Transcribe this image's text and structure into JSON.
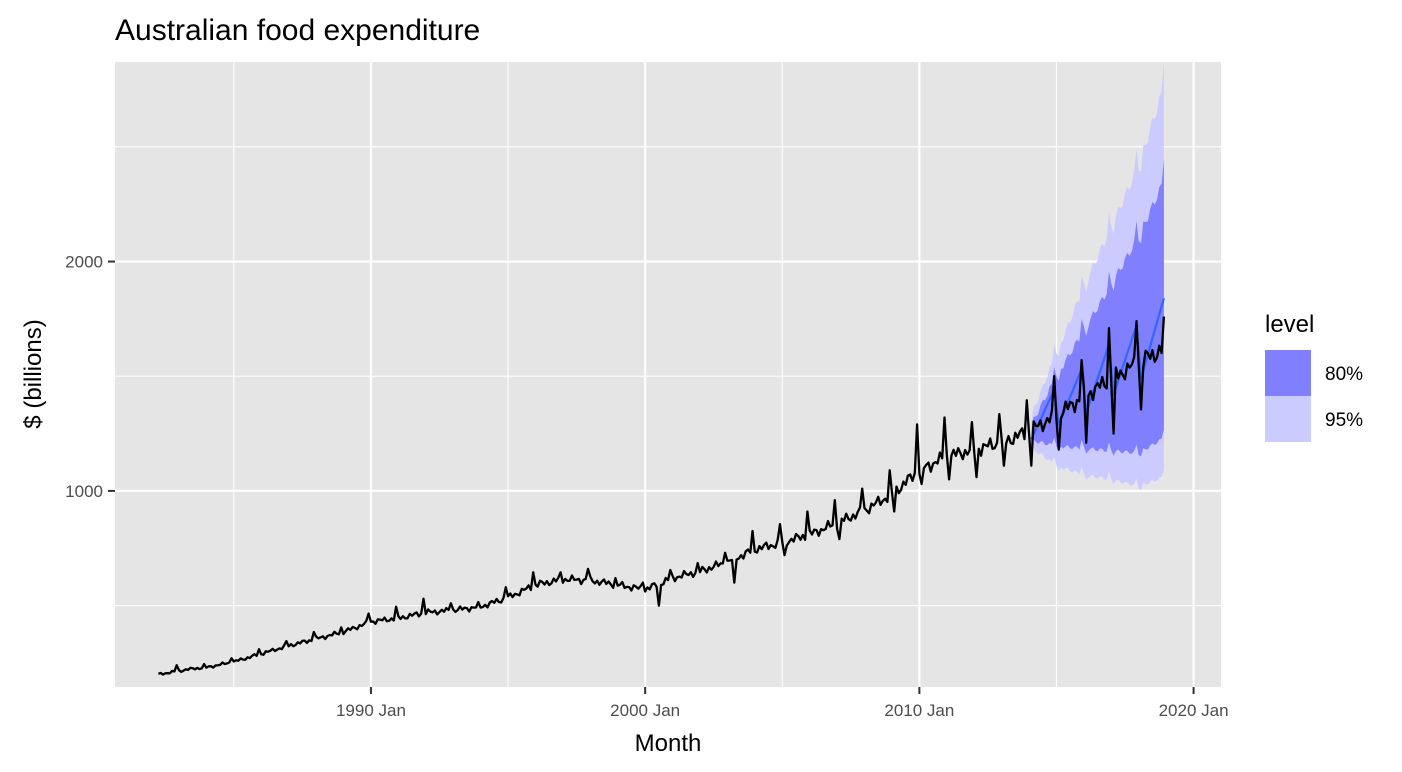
{
  "chart_data": {
    "type": "line",
    "title": "Australian food expenditure",
    "xlabel": "Month",
    "ylabel": "$ (billions)",
    "x_axis": {
      "type": "date",
      "range": [
        "1980-09",
        "2021-01"
      ],
      "major_ticks": [
        "1990-01",
        "2000-01",
        "2010-01",
        "2020-01"
      ],
      "major_tick_labels": [
        "1990 Jan",
        "2000 Jan",
        "2010 Jan",
        "2020 Jan"
      ],
      "minor_ticks": [
        "1985-01",
        "1995-01",
        "2005-01",
        "2015-01"
      ]
    },
    "y_axis": {
      "range": [
        145,
        2870
      ],
      "major_ticks": [
        1000,
        2000
      ],
      "major_tick_labels": [
        "1000",
        "2000"
      ],
      "minor_ticks": [
        500,
        1500,
        2500
      ]
    },
    "grid": true,
    "background": "#e5e5e5",
    "legend": {
      "title": "level",
      "position": "right",
      "entries": [
        {
          "label": "80%",
          "color": "#8080ff"
        },
        {
          "label": "95%",
          "color": "#cbcbff"
        }
      ]
    },
    "series": [
      {
        "name": "",
        "kind": "observed",
        "color": "#000000",
        "points": [
          [
            "1982-04",
            200
          ],
          [
            "1983-01",
            215
          ],
          [
            "1983-07",
            225
          ],
          [
            "1984-01",
            230
          ],
          [
            "1985-01",
            255
          ],
          [
            "1986-01",
            290
          ],
          [
            "1987-01",
            325
          ],
          [
            "1988-01",
            355
          ],
          [
            "1989-01",
            385
          ],
          [
            "1990-01",
            430
          ],
          [
            "1991-01",
            445
          ],
          [
            "1992-01",
            470
          ],
          [
            "1993-01",
            480
          ],
          [
            "1994-01",
            495
          ],
          [
            "1995-01",
            535
          ],
          [
            "1996-01",
            590
          ],
          [
            "1997-01",
            615
          ],
          [
            "1998-01",
            610
          ],
          [
            "1999-01",
            590
          ],
          [
            "2000-01",
            570
          ],
          [
            "2001-01",
            620
          ],
          [
            "2002-01",
            650
          ],
          [
            "2003-01",
            690
          ],
          [
            "2004-01",
            745
          ],
          [
            "2005-01",
            775
          ],
          [
            "2006-01",
            810
          ],
          [
            "2007-01",
            860
          ],
          [
            "2008-01",
            915
          ],
          [
            "2009-01",
            985
          ],
          [
            "2010-01",
            1090
          ],
          [
            "2011-01",
            1150
          ],
          [
            "2012-01",
            1180
          ],
          [
            "2013-01",
            1210
          ],
          [
            "2014-01",
            1260
          ],
          [
            "2015-01",
            1330
          ],
          [
            "2016-01",
            1410
          ],
          [
            "2017-01",
            1490
          ],
          [
            "2018-01",
            1560
          ],
          [
            "2018-12",
            1620
          ]
        ],
        "spikes": [
          [
            "1982-12",
            240
          ],
          [
            "1983-12",
            245
          ],
          [
            "1984-12",
            270
          ],
          [
            "1985-12",
            310
          ],
          [
            "1986-12",
            345
          ],
          [
            "1987-12",
            385
          ],
          [
            "1988-12",
            405
          ],
          [
            "1989-12",
            465
          ],
          [
            "1990-12",
            495
          ],
          [
            "1991-12",
            530
          ],
          [
            "1992-12",
            510
          ],
          [
            "1993-12",
            515
          ],
          [
            "1994-12",
            580
          ],
          [
            "1995-12",
            645
          ],
          [
            "1996-12",
            645
          ],
          [
            "1997-12",
            660
          ],
          [
            "1998-12",
            620
          ],
          [
            "1999-12",
            600
          ],
          [
            "2000-12",
            655
          ],
          [
            "2001-12",
            685
          ],
          [
            "2002-12",
            730
          ],
          [
            "2003-12",
            825
          ],
          [
            "2004-12",
            855
          ],
          [
            "2005-12",
            910
          ],
          [
            "2006-12",
            960
          ],
          [
            "2007-12",
            1010
          ],
          [
            "2008-12",
            1090
          ],
          [
            "2009-12",
            1290
          ],
          [
            "2010-12",
            1320
          ],
          [
            "2011-12",
            1300
          ],
          [
            "2012-12",
            1335
          ],
          [
            "2013-12",
            1395
          ],
          [
            "2014-12",
            1500
          ],
          [
            "2015-12",
            1570
          ],
          [
            "2016-12",
            1710
          ],
          [
            "2017-12",
            1740
          ],
          [
            "2018-12",
            1760
          ]
        ],
        "dips": [
          [
            "2000-07",
            500
          ],
          [
            "2003-04",
            600
          ],
          [
            "2005-02",
            720
          ],
          [
            "2007-02",
            790
          ],
          [
            "2009-02",
            910
          ],
          [
            "2010-02",
            1030
          ],
          [
            "2011-02",
            1050
          ],
          [
            "2012-02",
            1060
          ],
          [
            "2013-02",
            1110
          ],
          [
            "2014-02",
            1110
          ],
          [
            "2015-02",
            1180
          ],
          [
            "2016-02",
            1210
          ],
          [
            "2017-02",
            1250
          ],
          [
            "2018-02",
            1355
          ]
        ]
      },
      {
        "name": "",
        "kind": "forecast_mean",
        "color": "#3366ff",
        "points": [
          [
            "2014-02",
            1225
          ],
          [
            "2014-12",
            1440
          ],
          [
            "2015-02",
            1290
          ],
          [
            "2015-12",
            1530
          ],
          [
            "2016-02",
            1340
          ],
          [
            "2016-12",
            1640
          ],
          [
            "2017-02",
            1420
          ],
          [
            "2017-12",
            1720
          ],
          [
            "2018-02",
            1490
          ],
          [
            "2018-12",
            1840
          ]
        ]
      }
    ],
    "intervals": [
      {
        "level": "95%",
        "color": "#cbcbff",
        "upper": [
          [
            "2014-02",
            1330
          ],
          [
            "2015-01",
            1600
          ],
          [
            "2016-01",
            1890
          ],
          [
            "2017-01",
            2150
          ],
          [
            "2018-01",
            2420
          ],
          [
            "2018-12",
            2760
          ]
        ],
        "lower": [
          [
            "2014-02",
            1190
          ],
          [
            "2015-01",
            1110
          ],
          [
            "2016-01",
            1070
          ],
          [
            "2017-01",
            1050
          ],
          [
            "2018-01",
            1020
          ],
          [
            "2018-12",
            1060
          ]
        ]
      },
      {
        "level": "80%",
        "color": "#8080ff",
        "upper": [
          [
            "2014-02",
            1290
          ],
          [
            "2015-01",
            1500
          ],
          [
            "2016-01",
            1700
          ],
          [
            "2017-01",
            1900
          ],
          [
            "2018-01",
            2110
          ],
          [
            "2018-12",
            2350
          ]
        ],
        "lower": [
          [
            "2014-02",
            1220
          ],
          [
            "2015-01",
            1195
          ],
          [
            "2016-01",
            1185
          ],
          [
            "2017-01",
            1175
          ],
          [
            "2018-01",
            1165
          ],
          [
            "2018-12",
            1230
          ]
        ]
      }
    ]
  }
}
